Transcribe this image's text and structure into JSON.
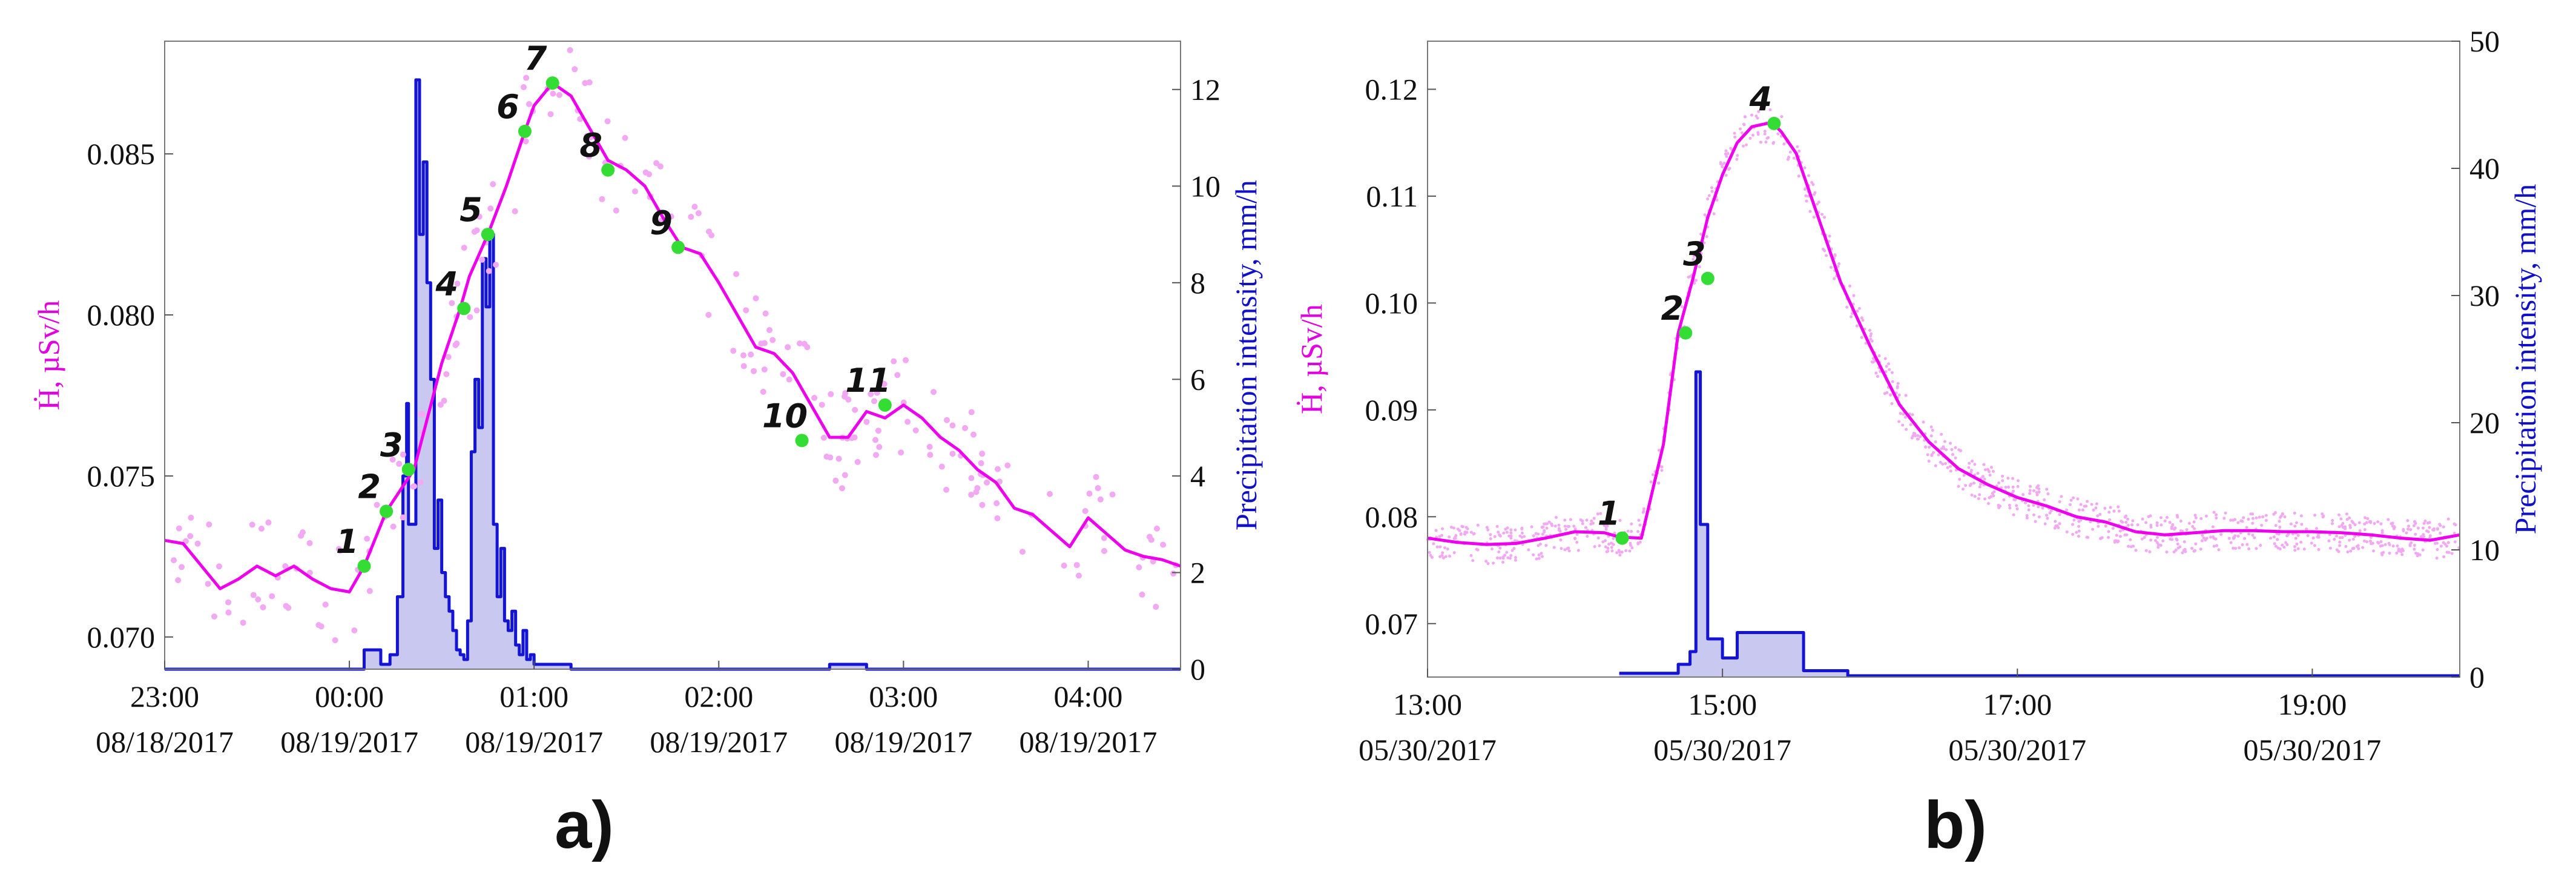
{
  "colors": {
    "dose": "#ee00ee",
    "dose_scatter": "#f2a8f2",
    "precip": "#1414d6",
    "precip_fill": "#c8c8f0",
    "points": "#33dd33"
  },
  "chart_data": [
    {
      "type": "line",
      "panel_label": "a)",
      "ylabel_left": "Ḣ, µSv/h",
      "ylabel_right": "Precipitation intensity, mm/h",
      "x_unit": "hours since 08/18/2017 23:00",
      "xlim": [
        0,
        5.5
      ],
      "ylim_left": [
        0.069,
        0.0885
      ],
      "ylim_right": [
        0,
        13
      ],
      "x_ticks": [
        {
          "x": 0,
          "time": "23:00",
          "date": "08/18/2017"
        },
        {
          "x": 1,
          "time": "00:00",
          "date": "08/19/2017"
        },
        {
          "x": 2,
          "time": "01:00",
          "date": "08/19/2017"
        },
        {
          "x": 3,
          "time": "02:00",
          "date": "08/19/2017"
        },
        {
          "x": 4,
          "time": "03:00",
          "date": "08/19/2017"
        },
        {
          "x": 5,
          "time": "04:00",
          "date": "08/19/2017"
        }
      ],
      "y_ticks_left": [
        "0.070",
        "0.075",
        "0.080",
        "0.085"
      ],
      "y_ticks_left_values": [
        0.07,
        0.075,
        0.08,
        0.085
      ],
      "y_ticks_right": [
        "0",
        "2",
        "4",
        "6",
        "8",
        "10",
        "12"
      ],
      "y_ticks_right_values": [
        0,
        2,
        4,
        6,
        8,
        10,
        12
      ],
      "series": [
        {
          "name": "dose_rate_smoothed",
          "axis": "left",
          "x": [
            0,
            0.1,
            0.2,
            0.3,
            0.4,
            0.5,
            0.6,
            0.7,
            0.8,
            0.9,
            1.0,
            1.08,
            1.2,
            1.35,
            1.5,
            1.6,
            1.65,
            1.75,
            1.85,
            1.95,
            2.0,
            2.1,
            2.2,
            2.3,
            2.4,
            2.5,
            2.6,
            2.7,
            2.8,
            2.9,
            3.0,
            3.1,
            3.2,
            3.3,
            3.4,
            3.5,
            3.6,
            3.7,
            3.8,
            3.9,
            4.0,
            4.1,
            4.2,
            4.3,
            4.4,
            4.5,
            4.6,
            4.7,
            4.8,
            4.9,
            5.0,
            5.1,
            5.2,
            5.3,
            5.4,
            5.5
          ],
          "y": [
            0.073,
            0.0729,
            0.0722,
            0.0715,
            0.0718,
            0.0722,
            0.0719,
            0.0722,
            0.0718,
            0.0715,
            0.0714,
            0.0722,
            0.0739,
            0.0752,
            0.0785,
            0.0802,
            0.0812,
            0.0825,
            0.084,
            0.0857,
            0.0865,
            0.0872,
            0.0868,
            0.0858,
            0.0848,
            0.0845,
            0.084,
            0.083,
            0.0821,
            0.0819,
            0.081,
            0.08,
            0.079,
            0.0788,
            0.0782,
            0.0772,
            0.0762,
            0.0762,
            0.077,
            0.0768,
            0.0772,
            0.0768,
            0.0762,
            0.0758,
            0.0752,
            0.0748,
            0.074,
            0.0738,
            0.0733,
            0.0728,
            0.0737,
            0.0732,
            0.0727,
            0.0725,
            0.0724,
            0.0722
          ]
        },
        {
          "name": "precipitation",
          "axis": "right",
          "style": "filled-step",
          "x": [
            0,
            0.9,
            1.05,
            1.08,
            1.12,
            1.17,
            1.22,
            1.26,
            1.29,
            1.31,
            1.32,
            1.36,
            1.38,
            1.4,
            1.42,
            1.44,
            1.46,
            1.48,
            1.5,
            1.52,
            1.54,
            1.56,
            1.58,
            1.6,
            1.62,
            1.64,
            1.66,
            1.68,
            1.7,
            1.72,
            1.74,
            1.76,
            1.78,
            1.8,
            1.82,
            1.84,
            1.86,
            1.88,
            1.9,
            1.92,
            1.94,
            1.96,
            1.98,
            2.0,
            2.1,
            2.2,
            2.4,
            3.5,
            3.6,
            3.8,
            4.0,
            5.5
          ],
          "y": [
            0,
            0,
            0,
            0.4,
            0.4,
            0.1,
            0.3,
            1.5,
            4.0,
            5.5,
            3.0,
            12.2,
            9.0,
            10.5,
            8.0,
            6.0,
            2.5,
            3.5,
            2.0,
            1.5,
            1.2,
            0.8,
            0.4,
            0.3,
            0.2,
            1.0,
            4.5,
            6.0,
            5.0,
            8.5,
            7.5,
            9.0,
            3.0,
            1.5,
            2.5,
            1.0,
            0.8,
            1.2,
            0.5,
            0.3,
            0.8,
            0.2,
            0.3,
            0.1,
            0.1,
            0,
            0,
            0,
            0.1,
            0,
            0,
            0
          ]
        },
        {
          "name": "labeled_points",
          "axis": "left",
          "labels": [
            "1",
            "2",
            "3",
            "4",
            "5",
            "6",
            "7",
            "8",
            "9",
            "10",
            "11"
          ],
          "x": [
            1.08,
            1.2,
            1.32,
            1.62,
            1.75,
            1.95,
            2.1,
            2.4,
            2.78,
            3.45,
            3.9
          ],
          "y": [
            0.0722,
            0.0739,
            0.0752,
            0.0802,
            0.0825,
            0.0857,
            0.0872,
            0.0845,
            0.0821,
            0.0761,
            0.0772
          ]
        }
      ]
    },
    {
      "type": "line",
      "panel_label": "b)",
      "ylabel_left": "Ḣ, µSv/h",
      "ylabel_right": "Precipitation intensity, mm/h",
      "x_unit": "hours since 05/30/2017 13:00",
      "xlim": [
        0,
        7
      ],
      "ylim_left": [
        0.065,
        0.1245
      ],
      "ylim_right": [
        0,
        50
      ],
      "x_ticks": [
        {
          "x": 0,
          "time": "13:00",
          "date": "05/30/2017"
        },
        {
          "x": 2,
          "time": "15:00",
          "date": "05/30/2017"
        },
        {
          "x": 4,
          "time": "17:00",
          "date": "05/30/2017"
        },
        {
          "x": 6,
          "time": "19:00",
          "date": "05/30/2017"
        }
      ],
      "y_ticks_left": [
        "0.07",
        "0.08",
        "0.09",
        "0.10",
        "0.11",
        "0.12"
      ],
      "y_ticks_left_values": [
        0.07,
        0.08,
        0.09,
        0.1,
        0.11,
        0.12
      ],
      "y_ticks_right": [
        "0",
        "10",
        "20",
        "30",
        "40",
        "50"
      ],
      "y_ticks_right_values": [
        0,
        10,
        20,
        30,
        40,
        50
      ],
      "series": [
        {
          "name": "dose_rate_smoothed",
          "axis": "left",
          "x": [
            0,
            0.2,
            0.4,
            0.6,
            0.8,
            1.0,
            1.2,
            1.3,
            1.45,
            1.6,
            1.7,
            1.8,
            1.9,
            2.0,
            2.1,
            2.2,
            2.3,
            2.35,
            2.4,
            2.5,
            2.6,
            2.7,
            2.8,
            3.0,
            3.2,
            3.4,
            3.6,
            3.8,
            4.0,
            4.2,
            4.4,
            4.6,
            4.8,
            5.0,
            5.2,
            5.4,
            5.6,
            5.8,
            6.0,
            6.2,
            6.4,
            6.6,
            6.8,
            7.0
          ],
          "y": [
            0.078,
            0.0776,
            0.0774,
            0.0775,
            0.078,
            0.0786,
            0.0785,
            0.0781,
            0.078,
            0.0868,
            0.0972,
            0.1023,
            0.108,
            0.112,
            0.115,
            0.1165,
            0.1168,
            0.1167,
            0.116,
            0.114,
            0.11,
            0.106,
            0.102,
            0.096,
            0.0905,
            0.087,
            0.0845,
            0.083,
            0.0818,
            0.081,
            0.08,
            0.0795,
            0.0786,
            0.0783,
            0.0785,
            0.0787,
            0.0787,
            0.0786,
            0.0786,
            0.0785,
            0.0783,
            0.078,
            0.0778,
            0.0783
          ]
        },
        {
          "name": "precipitation",
          "axis": "right",
          "style": "filled-step",
          "x": [
            1.3,
            1.55,
            1.7,
            1.78,
            1.82,
            1.85,
            1.9,
            2.0,
            2.1,
            2.2,
            2.55,
            2.85,
            7.0
          ],
          "y": [
            0.3,
            0.3,
            1.0,
            2.0,
            24.0,
            12.0,
            3.0,
            1.5,
            3.5,
            3.5,
            0.5,
            0.1,
            0.1
          ]
        },
        {
          "name": "labeled_points",
          "axis": "left",
          "labels": [
            "1",
            "2",
            "3",
            "4"
          ],
          "x": [
            1.32,
            1.75,
            1.9,
            2.35
          ],
          "y": [
            0.078,
            0.0972,
            0.1023,
            0.1168
          ]
        }
      ]
    }
  ]
}
